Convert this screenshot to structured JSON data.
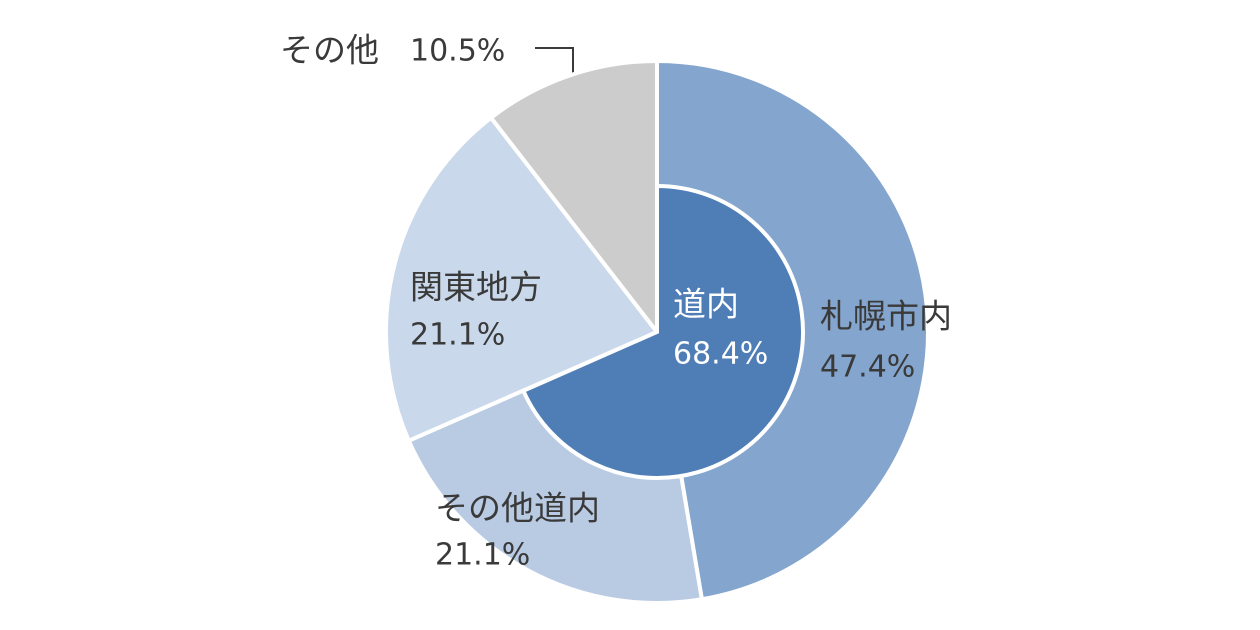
{
  "chart_data": {
    "type": "pie",
    "categories": [
      "札幌市内",
      "その他道内",
      "関東地方",
      "その他"
    ],
    "values": [
      47.4,
      21.1,
      21.1,
      10.5
    ],
    "value_labels": [
      "47.4%",
      "21.1%",
      "21.1%",
      "10.5%"
    ],
    "colors": [
      "#84a5cd",
      "#b9cbe3",
      "#c9d8ea",
      "#cccccc"
    ],
    "inner": {
      "label": "道内",
      "value": 68.4,
      "value_label": "68.4%",
      "color": "#4f7db5"
    }
  }
}
